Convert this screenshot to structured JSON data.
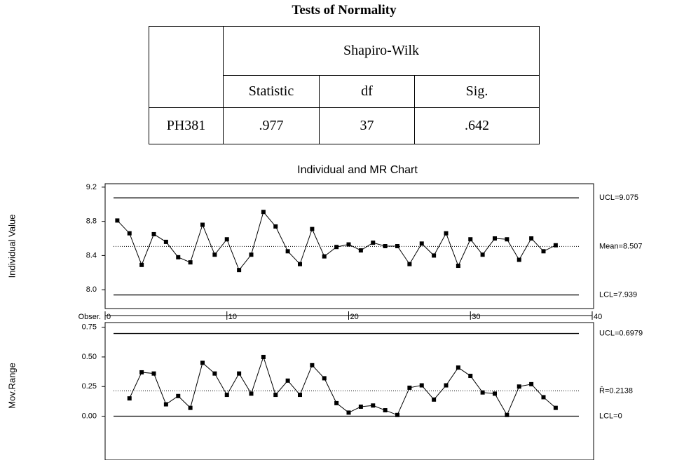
{
  "table": {
    "title": "Tests of Normality",
    "header": [
      [
        "Shapiro-Wilk"
      ],
      [
        "Statistic",
        "df",
        "Sig."
      ]
    ],
    "rows": [
      [
        "PH381",
        ".977",
        "37",
        ".642"
      ]
    ]
  },
  "chart_data": [
    {
      "type": "line",
      "title": "Individual and MR Chart",
      "ylabel": "Individual Value",
      "xlabel": "Obser.",
      "xlim": [
        0,
        40
      ],
      "xticks": [
        0,
        10,
        20,
        30,
        40
      ],
      "ylim": [
        7.78,
        9.24
      ],
      "yticks": [
        9.2,
        8.8,
        8.4,
        {
          "value": 8,
          "label": "8.0"
        }
      ],
      "reference_lines": [
        {
          "value": 9.075,
          "label": "UCL=9.075",
          "style": "solid"
        },
        {
          "value": 8.507,
          "label": "Mean=8.507",
          "style": "dotted"
        },
        {
          "value": 7.939,
          "label": "LCL=7.939",
          "style": "solid"
        }
      ],
      "series": [
        {
          "color": "#000000",
          "x": [
            1,
            2,
            3,
            4,
            5,
            6,
            7,
            8,
            9,
            10,
            11,
            12,
            13,
            14,
            15,
            16,
            17,
            18,
            19,
            20,
            21,
            22,
            23,
            24,
            25,
            26,
            27,
            28,
            29,
            30,
            31,
            32,
            33,
            34,
            35,
            36,
            37
          ],
          "values": [
            8.81,
            8.66,
            8.29,
            8.65,
            8.56,
            8.38,
            8.32,
            8.76,
            8.41,
            8.59,
            8.23,
            8.41,
            8.91,
            8.74,
            8.45,
            8.3,
            8.71,
            8.39,
            8.5,
            8.53,
            8.46,
            8.55,
            8.51,
            8.51,
            8.3,
            8.54,
            8.4,
            8.66,
            8.28,
            8.59,
            8.41,
            8.6,
            8.59,
            8.35,
            8.6,
            8.45,
            8.52
          ]
        }
      ]
    },
    {
      "type": "line",
      "ylabel": "Mov.Range",
      "xlim": [
        0,
        40
      ],
      "ylim": [
        -0.37,
        0.79
      ],
      "yticks": [
        0.75,
        {
          "value": 0.5,
          "label": "0.50"
        },
        0.25,
        {
          "value": 0,
          "label": "0.00"
        }
      ],
      "reference_lines": [
        {
          "value": 0.6979,
          "label": "UCL=0.6979",
          "style": "solid"
        },
        {
          "value": 0.2138,
          "label": "R̄=0.2138",
          "style": "dotted"
        },
        {
          "value": 0,
          "label": "LCL=0",
          "style": "solid"
        }
      ],
      "series": [
        {
          "color": "#000000",
          "x": [
            2,
            3,
            4,
            5,
            6,
            7,
            8,
            9,
            10,
            11,
            12,
            13,
            14,
            15,
            16,
            17,
            18,
            19,
            20,
            21,
            22,
            23,
            24,
            25,
            26,
            27,
            28,
            29,
            30,
            31,
            32,
            33,
            34,
            35,
            36,
            37
          ],
          "values": [
            0.15,
            0.37,
            0.36,
            0.1,
            0.17,
            0.07,
            0.45,
            0.36,
            0.18,
            0.36,
            0.19,
            0.5,
            0.18,
            0.3,
            0.18,
            0.43,
            0.32,
            0.11,
            0.03,
            0.08,
            0.09,
            0.05,
            0.01,
            0.24,
            0.26,
            0.14,
            0.26,
            0.41,
            0.34,
            0.2,
            0.19,
            0.01,
            0.25,
            0.27,
            0.16,
            0.07
          ]
        }
      ]
    }
  ]
}
